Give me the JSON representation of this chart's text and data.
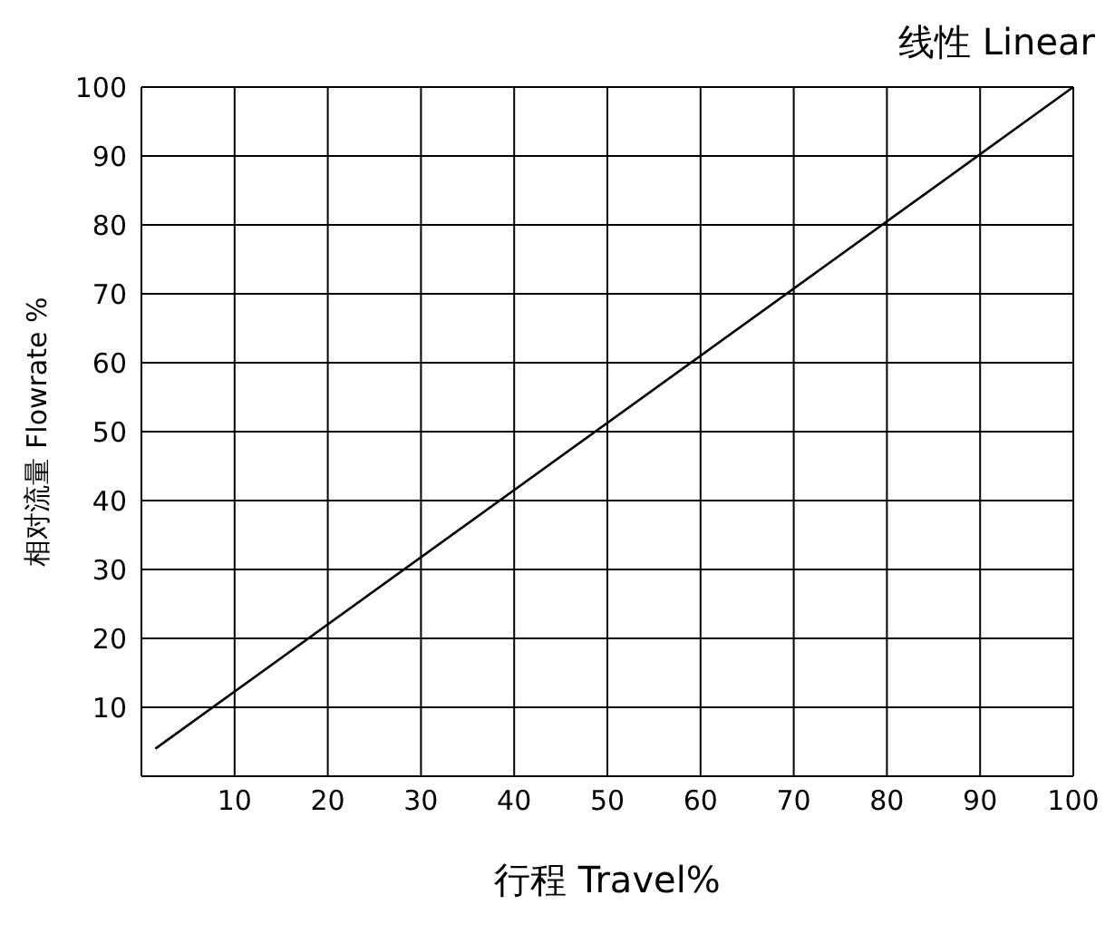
{
  "chart_data": {
    "type": "line",
    "title": "线性  Linear",
    "xlabel": "行程  Travel%",
    "ylabel": "相对流量  Flowrate %",
    "x": [
      1.5,
      100
    ],
    "series": [
      {
        "color": "#000000",
        "values": [
          4,
          100
        ]
      }
    ],
    "xlim": [
      0,
      100
    ],
    "xticks": [
      10,
      20,
      30,
      40,
      50,
      60,
      70,
      80,
      90,
      100
    ],
    "ylim": [
      0,
      100
    ],
    "yticks": [
      10,
      20,
      30,
      40,
      50,
      60,
      70,
      80,
      90,
      100
    ],
    "grid": true,
    "legend": false,
    "marker": "none",
    "line_style": "solid"
  }
}
